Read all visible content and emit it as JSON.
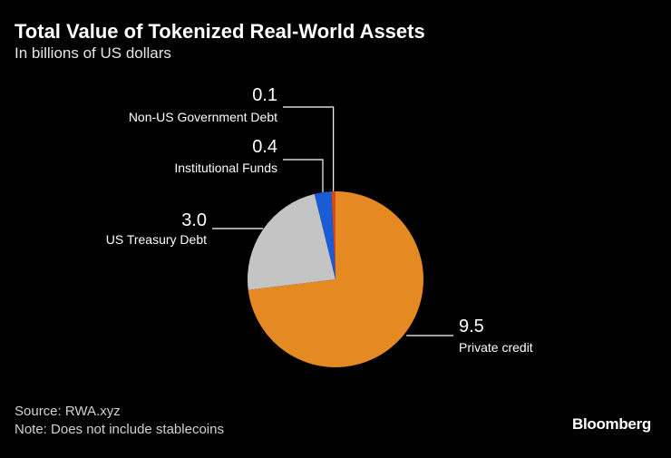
{
  "header": {
    "title": "Total Value of Tokenized Real-World Assets",
    "subtitle": "In billions of US dollars"
  },
  "footer": {
    "source": "Source: RWA.xyz",
    "note": "Note: Does not include stablecoins",
    "brand": "Bloomberg"
  },
  "chart_data": {
    "type": "pie",
    "title": "Total Value of Tokenized Real-World Assets",
    "subtitle": "In billions of US dollars",
    "unit": "billions of US dollars",
    "start": "12 o'clock, clockwise",
    "slices": [
      {
        "label": "Private credit",
        "value": 9.5,
        "value_label": "9.5",
        "color": "#e58a23"
      },
      {
        "label": "US Treasury Debt",
        "value": 3.0,
        "value_label": "3.0",
        "color": "#c4c4c4"
      },
      {
        "label": "Institutional Funds",
        "value": 0.4,
        "value_label": "0.4",
        "color": "#1a5cd6"
      },
      {
        "label": "Non-US Government Debt",
        "value": 0.1,
        "value_label": "0.1",
        "color": "#d2491e"
      }
    ]
  }
}
